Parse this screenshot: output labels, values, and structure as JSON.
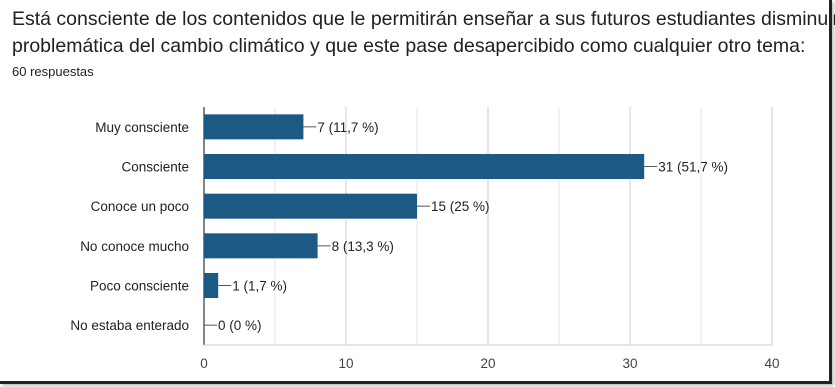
{
  "header": {
    "title_line1": "Está consciente de los contenidos que le permitirán enseñar a sus futuros estudiantes disminuir la",
    "title_line2": "problemática del cambio climático y que este pase desapercibido como cualquier otro tema:",
    "responses": "60 respuestas"
  },
  "chart_data": {
    "type": "bar",
    "orientation": "horizontal",
    "categories": [
      "Muy consciente",
      "Consciente",
      "Conoce un poco",
      "No conoce mucho",
      "Poco consciente",
      "No estaba enterado"
    ],
    "values": [
      7,
      31,
      15,
      8,
      1,
      0
    ],
    "value_labels": [
      "7 (11,7 %)",
      "31 (51,7 %)",
      "15 (25 %)",
      "8 (13,3 %)",
      "1 (1,7 %)",
      "0 (0 %)"
    ],
    "x_ticks": [
      0,
      10,
      20,
      30,
      40
    ],
    "xlim": [
      0,
      40
    ],
    "grid": true,
    "bar_color": "#1c5985"
  }
}
